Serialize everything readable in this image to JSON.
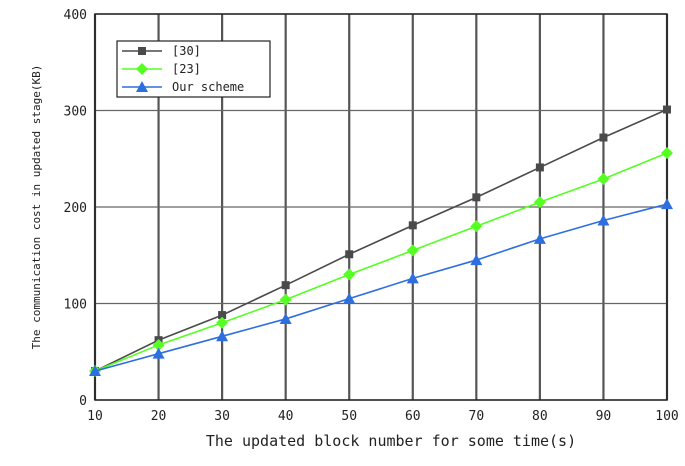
{
  "chart_data": {
    "type": "line",
    "xlabel": "The updated block number for some time(s)",
    "ylabel": "The communication cost in updated stage(KB)",
    "x": [
      10,
      20,
      30,
      40,
      50,
      60,
      70,
      80,
      90,
      100
    ],
    "xlim": [
      10,
      100
    ],
    "ylim": [
      0,
      400
    ],
    "xticks": [
      "10",
      "20",
      "30",
      "40",
      "50",
      "60",
      "70",
      "80",
      "90",
      "100"
    ],
    "yticks": [
      "0",
      "100",
      "200",
      "300",
      "400"
    ],
    "grid": true,
    "legend_position": "top-left",
    "series": [
      {
        "name": "[30]",
        "color": "#4a4a4a",
        "marker": "square",
        "values": [
          30,
          62,
          88,
          119,
          151,
          181,
          210,
          241,
          272,
          301
        ]
      },
      {
        "name": "[23]",
        "color": "#55ff22",
        "marker": "diamond",
        "values": [
          30,
          57,
          80,
          104,
          130,
          155,
          180,
          205,
          229,
          256
        ]
      },
      {
        "name": "Our scheme",
        "color": "#2e6fe0",
        "marker": "triangle",
        "values": [
          30,
          48,
          66,
          84,
          105,
          126,
          145,
          167,
          186,
          203
        ]
      }
    ]
  }
}
